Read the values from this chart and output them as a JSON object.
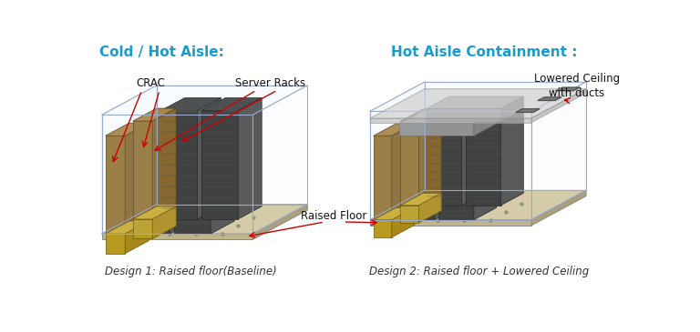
{
  "bg_color": "#ffffff",
  "title_left": "Cold / Hot Aisle:",
  "title_right": "Hot Aisle Containment :",
  "title_color": "#1a9bce",
  "title_fontsize": 11,
  "title_fontweight": "bold",
  "caption_left": "Design 1: Raised floor(Baseline)",
  "caption_right": "Design 2: Raised floor + Lowered Ceiling",
  "caption_fontsize": 8.5,
  "label_crac": "CRAC",
  "label_racks": "Server Racks",
  "label_floor": "Raised Floor",
  "label_ceiling": "Lowered Ceiling\nwith ducts",
  "annotation_color": "#cc0000",
  "floor_top_color": "#d4c8a0",
  "floor_front_color": "#bfb48a",
  "floor_right_color": "#aba07a",
  "rack_front_color": "#2e2e2e",
  "rack_top_color": "#3a3a3a",
  "rack_side_color": "#484848",
  "crac_front_color": "#8b6420",
  "crac_top_color": "#a07830",
  "crac_side_color": "#7a5818",
  "crac_base_front": "#b89a20",
  "crac_base_top": "#c8aa30",
  "crac_base_side": "#a88818",
  "wall_color": "#aabbcc",
  "wall_alpha": 0.15,
  "contain_front": "#888888",
  "contain_top": "#aaaaaa",
  "contain_side": "#777777",
  "ceil_top_color": "#cccccc",
  "ceil_front_color": "#bbbbbb",
  "ceil_side_color": "#aaaaaa",
  "ceil_alpha": 0.65,
  "duct_color": "#777777"
}
